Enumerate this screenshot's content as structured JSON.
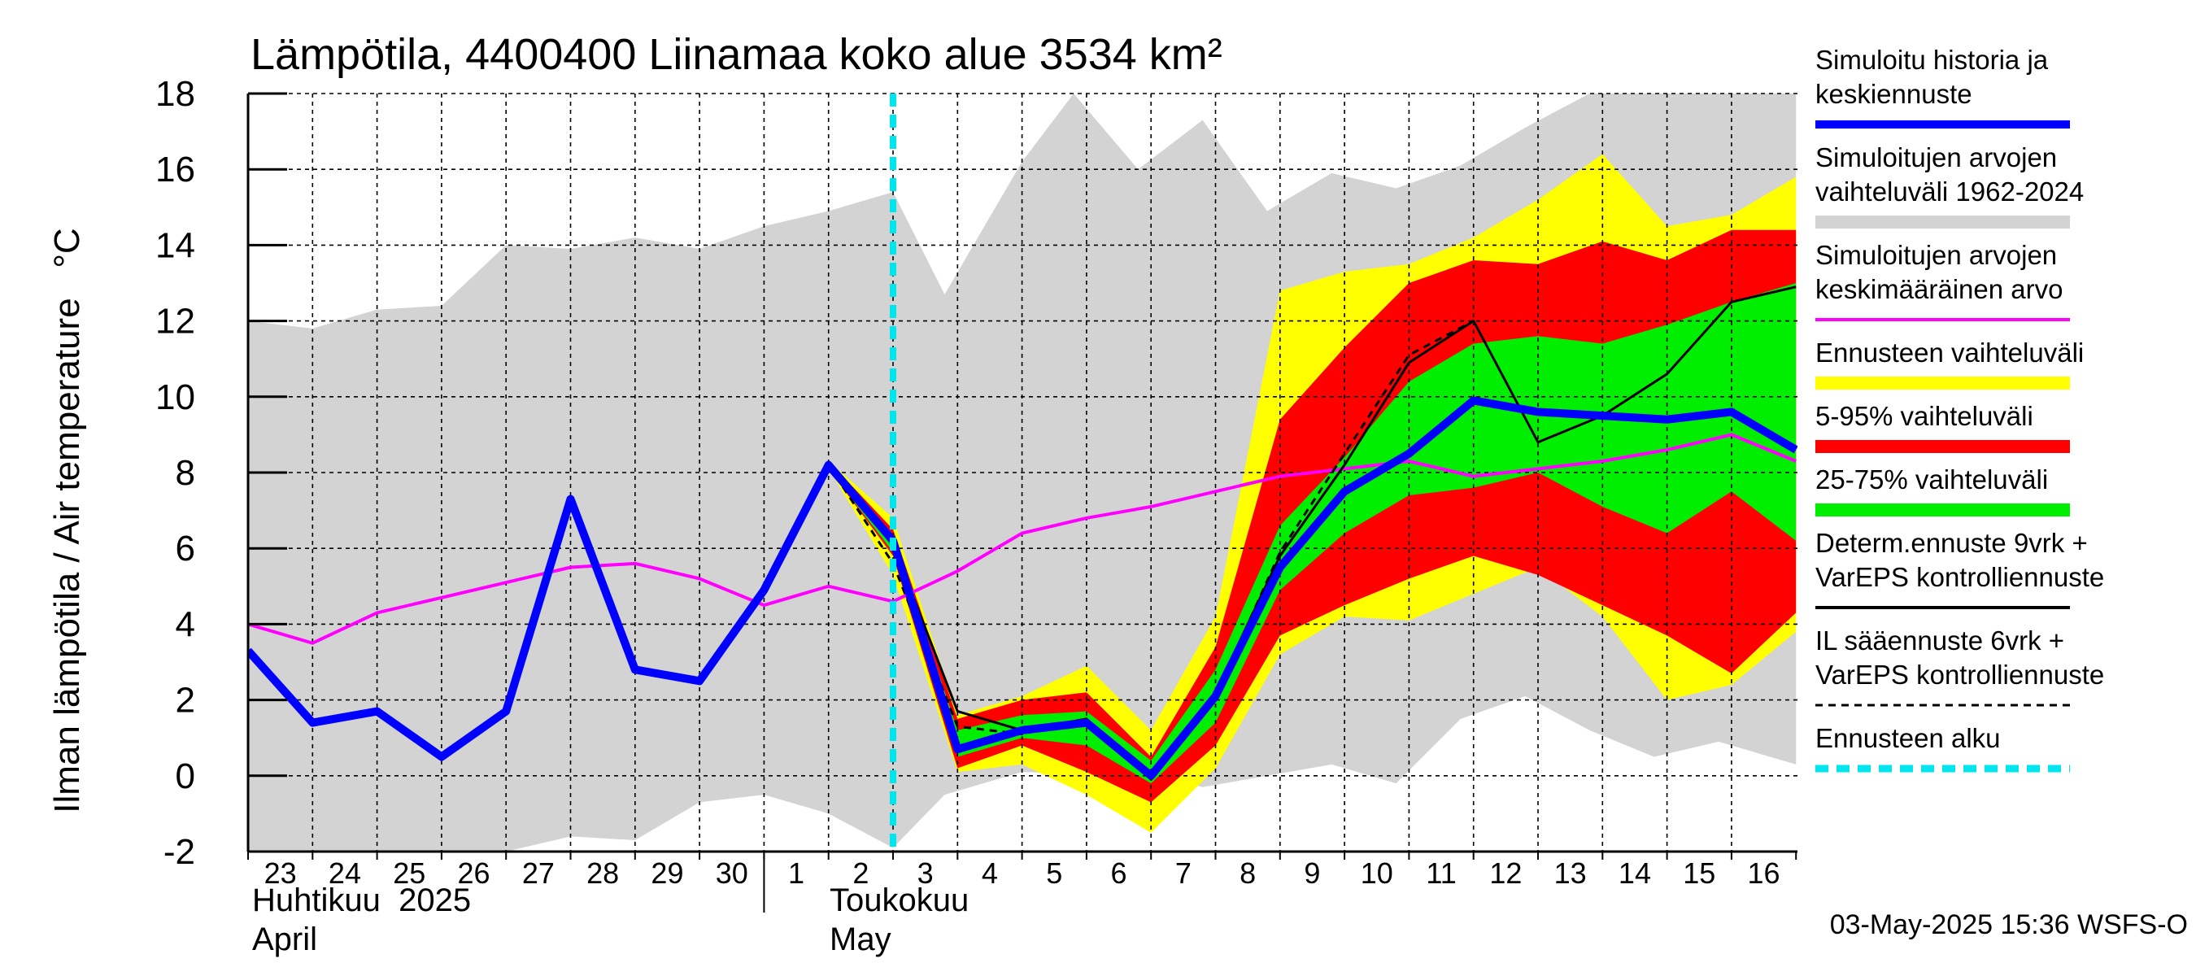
{
  "chart_data": {
    "type": "line",
    "title": "Lämpötila, 4400400 Liinamaa koko alue 3534 km²",
    "ylabel": "Ilman lämpötila / Air temperature   °C",
    "ylim": [
      -2,
      18
    ],
    "yticks": [
      -2,
      0,
      2,
      4,
      6,
      8,
      10,
      12,
      14,
      16,
      18
    ],
    "ytick_labels": [
      "-2",
      "0",
      "2",
      "4",
      "6",
      "8",
      "10",
      "12",
      "14",
      "16",
      "18"
    ],
    "day_labels": [
      "23",
      "24",
      "25",
      "26",
      "27",
      "28",
      "29",
      "30",
      "1",
      "2",
      "3",
      "4",
      "5",
      "6",
      "7",
      "8",
      "9",
      "10",
      "11",
      "12",
      "13",
      "14",
      "15",
      "16"
    ],
    "months": [
      {
        "fi": "Huhtikuu  2025",
        "en": "April"
      },
      {
        "fi": "Toukokuu",
        "en": "May"
      }
    ],
    "forecast_start_x": 10.0,
    "timestamp": "03-May-2025 15:36 WSFS-O",
    "grid": true,
    "series": [
      {
        "name": "Simuloitujen arvojen vaihteluväli 1962-2024",
        "kind": "band",
        "color": "#d3d3d3",
        "x": [
          -0.2,
          1,
          2,
          3,
          4,
          5,
          6,
          7,
          8,
          9,
          10,
          10.8,
          12,
          12.8,
          13.8,
          14.8,
          15.8,
          16.8,
          17.8,
          18.8,
          19.8,
          20.8,
          21.8,
          22.8,
          24
        ],
        "upper": [
          12,
          11.8,
          12.3,
          12.4,
          14,
          13.9,
          14.2,
          13.9,
          14.5,
          14.9,
          15.4,
          12.7,
          16.2,
          18.1,
          16,
          17.3,
          14.9,
          15.9,
          15.5,
          16.1,
          17.1,
          18,
          18,
          18,
          18
        ],
        "lower": [
          -2,
          -2,
          -2,
          -2,
          -2,
          -1.6,
          -1.7,
          -0.7,
          -0.5,
          -1,
          -1.9,
          -0.5,
          0.1,
          0.05,
          0.2,
          -0.3,
          0,
          0.3,
          -0.2,
          1.5,
          2.1,
          1.2,
          0.5,
          0.9,
          0.3
        ]
      },
      {
        "name": "Ennusteen vaihteluväli",
        "kind": "band",
        "color": "#ffff00",
        "x": [
          9,
          10,
          11,
          12,
          13,
          14,
          15,
          16,
          17,
          18,
          19,
          20,
          21,
          22,
          23,
          24
        ],
        "upper": [
          8.3,
          6.8,
          1.6,
          2.1,
          2.9,
          1.2,
          4.2,
          12.8,
          13.3,
          13.5,
          14.2,
          15.2,
          16.4,
          14.5,
          14.8,
          15.8
        ],
        "lower": [
          8.1,
          5.3,
          0.1,
          0.3,
          -0.5,
          -1.5,
          0.2,
          3.2,
          4.2,
          4.1,
          4.8,
          5.5,
          4.2,
          2,
          2.4,
          3.8
        ]
      },
      {
        "name": "5-95% vaihteluväli",
        "kind": "band",
        "color": "#ff0000",
        "x": [
          9,
          10,
          11,
          12,
          13,
          14,
          15,
          16,
          17,
          18,
          19,
          20,
          21,
          22,
          23,
          24
        ],
        "upper": [
          8.3,
          6.5,
          1.5,
          2,
          2.2,
          0.5,
          3.4,
          9.4,
          11.3,
          13,
          13.6,
          13.5,
          14.1,
          13.6,
          14.4,
          14.4
        ],
        "lower": [
          8.1,
          5.8,
          0.2,
          0.8,
          0.1,
          -0.7,
          0.8,
          3.7,
          4.5,
          5.2,
          5.8,
          5.3,
          4.5,
          3.7,
          2.7,
          4.3
        ]
      },
      {
        "name": "25-75% vaihteluväli",
        "kind": "band",
        "color": "#00ee00",
        "x": [
          9,
          10,
          11,
          12,
          13,
          14,
          15,
          16,
          17,
          18,
          19,
          20,
          21,
          22,
          23,
          24
        ],
        "upper": [
          8.3,
          6.3,
          1.2,
          1.6,
          1.7,
          0.4,
          2.8,
          6.6,
          8.4,
          10.4,
          11.4,
          11.6,
          11.4,
          11.9,
          12.5,
          13
        ],
        "lower": [
          8.1,
          5.9,
          0.5,
          1,
          0.8,
          -0.2,
          1.4,
          4.9,
          6.4,
          7.4,
          7.6,
          8,
          7.1,
          6.4,
          7.5,
          6.2
        ]
      },
      {
        "name": "Simuloitujen arvojen keskimääräinen arvo",
        "kind": "line",
        "color": "#ff00ff",
        "x": [
          0,
          1,
          2,
          3,
          4,
          5,
          6,
          7,
          8,
          9,
          10,
          11,
          12,
          13,
          14,
          15,
          16,
          17,
          18,
          19,
          20,
          21,
          22,
          23,
          24
        ],
        "y": [
          4,
          3.5,
          4.3,
          4.7,
          5.1,
          5.5,
          5.6,
          5.2,
          4.5,
          5,
          4.6,
          5.4,
          6.4,
          6.8,
          7.1,
          7.5,
          7.9,
          8.1,
          8.3,
          7.9,
          8.1,
          8.3,
          8.6,
          9,
          8.3
        ]
      },
      {
        "name": "Determ.ennuste 9vrk + VarEPS kontrolliennuste",
        "kind": "line",
        "color": "#000000",
        "x": [
          8,
          9,
          10,
          11,
          12,
          13,
          14,
          15,
          16,
          17,
          18,
          19,
          20,
          21,
          22,
          23,
          24
        ],
        "y": [
          5,
          8.2,
          6.1,
          1.7,
          1.2,
          1.5,
          0,
          2.2,
          5.8,
          8.2,
          10.9,
          12,
          8.8,
          9.5,
          10.6,
          12.5,
          12.9
        ]
      },
      {
        "name": "IL sääennuste 6vrk + VarEPS kontrolliennuste",
        "kind": "line",
        "color": "#000000",
        "dashed": true,
        "x": [
          9,
          10,
          11,
          12,
          13,
          14,
          15,
          16,
          17,
          18,
          19
        ],
        "y": [
          8.2,
          5.6,
          1.3,
          1.1,
          1.5,
          -0.1,
          2.1,
          5.9,
          8.5,
          11.1,
          12
        ]
      },
      {
        "name": "Simuloitu historia ja keskiennuste",
        "kind": "line",
        "color": "#0000ff",
        "x": [
          0,
          1,
          2,
          3,
          4,
          5,
          6,
          7,
          8,
          9,
          10,
          11,
          12,
          13,
          14,
          15,
          16,
          17,
          18,
          19,
          20,
          21,
          22,
          23,
          24
        ],
        "y": [
          3.3,
          1.4,
          1.7,
          0.5,
          1.7,
          7.3,
          2.8,
          2.5,
          4.9,
          8.2,
          6.2,
          0.7,
          1.2,
          1.4,
          0,
          2.1,
          5.5,
          7.5,
          8.5,
          9.9,
          9.6,
          9.5,
          9.4,
          9.6,
          8.6
        ]
      }
    ],
    "legend": [
      {
        "lines": [
          "Simuloitu historia ja",
          "keskiennuste"
        ],
        "color": "#0000ff",
        "style": "thick"
      },
      {
        "lines": [
          "Simuloitujen arvojen",
          "vaihteluväli 1962-2024"
        ],
        "color": "#d3d3d3",
        "style": "band"
      },
      {
        "lines": [
          "Simuloitujen arvojen",
          "keskimääräinen arvo"
        ],
        "color": "#ff00ff",
        "style": "thin"
      },
      {
        "lines": [
          "Ennusteen vaihteluväli"
        ],
        "color": "#ffff00",
        "style": "band"
      },
      {
        "lines": [
          "5-95% vaihteluväli"
        ],
        "color": "#ff0000",
        "style": "band"
      },
      {
        "lines": [
          "25-75% vaihteluväli"
        ],
        "color": "#00ee00",
        "style": "band"
      },
      {
        "lines": [
          "Determ.ennuste 9vrk +",
          "VarEPS kontrolliennuste"
        ],
        "color": "#000000",
        "style": "thin"
      },
      {
        "lines": [
          "IL sääennuste 6vrk  +",
          "  VarEPS kontrolliennuste"
        ],
        "color": "#000000",
        "style": "dashed"
      },
      {
        "lines": [
          "Ennusteen alku"
        ],
        "color": "#00e5ee",
        "style": "dashed-thick"
      }
    ]
  }
}
